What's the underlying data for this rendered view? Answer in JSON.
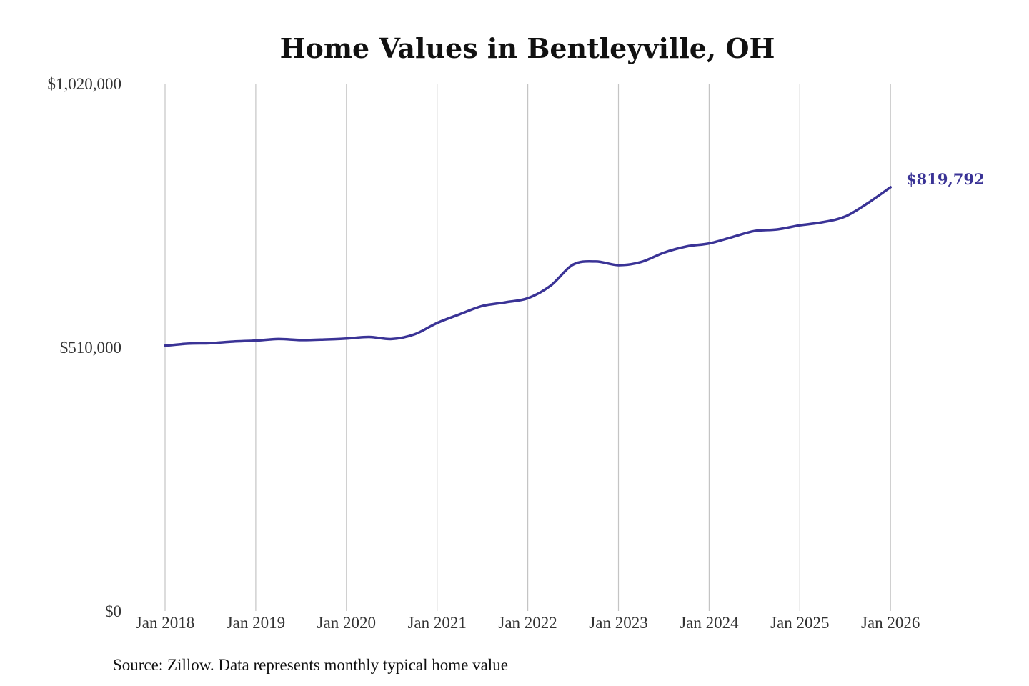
{
  "chart_data": {
    "type": "line",
    "title": "Home Values in Bentleyville, OH",
    "y_tick_labels": [
      "$0",
      "$510,000",
      "$1,020,000"
    ],
    "y_tick_values": [
      0,
      510000,
      1020000
    ],
    "ylim": [
      0,
      1020000
    ],
    "x_tick_labels": [
      "Jan 2018",
      "Jan 2019",
      "Jan 2020",
      "Jan 2021",
      "Jan 2022",
      "Jan 2023",
      "Jan 2024",
      "Jan 2025",
      "Jan 2026"
    ],
    "x_tick_values": [
      "2018-01",
      "2019-01",
      "2020-01",
      "2021-01",
      "2022-01",
      "2023-01",
      "2024-01",
      "2025-01",
      "2026-01"
    ],
    "grid": "vertical",
    "series": [
      {
        "color": "#3a3396",
        "points": [
          {
            "x": "2018-01",
            "y": 513000
          },
          {
            "x": "2018-04",
            "y": 517000
          },
          {
            "x": "2018-07",
            "y": 518000
          },
          {
            "x": "2018-10",
            "y": 521000
          },
          {
            "x": "2019-01",
            "y": 523000
          },
          {
            "x": "2019-04",
            "y": 526000
          },
          {
            "x": "2019-07",
            "y": 524000
          },
          {
            "x": "2019-10",
            "y": 525000
          },
          {
            "x": "2020-01",
            "y": 527000
          },
          {
            "x": "2020-04",
            "y": 530000
          },
          {
            "x": "2020-07",
            "y": 526000
          },
          {
            "x": "2020-10",
            "y": 535000
          },
          {
            "x": "2021-01",
            "y": 557000
          },
          {
            "x": "2021-04",
            "y": 574000
          },
          {
            "x": "2021-07",
            "y": 590000
          },
          {
            "x": "2021-10",
            "y": 597000
          },
          {
            "x": "2022-01",
            "y": 605000
          },
          {
            "x": "2022-04",
            "y": 629000
          },
          {
            "x": "2022-07",
            "y": 670000
          },
          {
            "x": "2022-10",
            "y": 676000
          },
          {
            "x": "2023-01",
            "y": 669000
          },
          {
            "x": "2023-04",
            "y": 675000
          },
          {
            "x": "2023-07",
            "y": 693000
          },
          {
            "x": "2023-10",
            "y": 705000
          },
          {
            "x": "2024-01",
            "y": 711000
          },
          {
            "x": "2024-04",
            "y": 723000
          },
          {
            "x": "2024-07",
            "y": 735000
          },
          {
            "x": "2024-10",
            "y": 738000
          },
          {
            "x": "2025-01",
            "y": 746000
          },
          {
            "x": "2025-04",
            "y": 752000
          },
          {
            "x": "2025-07",
            "y": 763000
          },
          {
            "x": "2025-10",
            "y": 789000
          },
          {
            "x": "2026-01",
            "y": 819792
          }
        ]
      }
    ],
    "end_value_label": "$819,792",
    "legend": "none"
  },
  "source_note": "Source: Zillow. Data represents monthly typical home value"
}
